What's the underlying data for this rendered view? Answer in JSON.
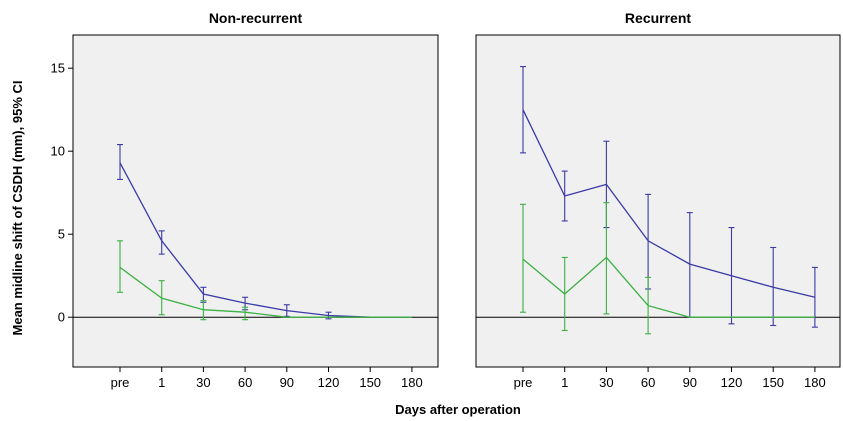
{
  "chart_data": {
    "type": "line",
    "xlabel": "Days after operation",
    "ylabel": "Mean midline shift of CSDH (mm), 95% CI",
    "categories": [
      "pre",
      "1",
      "30",
      "60",
      "90",
      "120",
      "150",
      "180"
    ],
    "ylim": [
      -3,
      17
    ],
    "yticks": [
      0,
      5,
      10,
      15
    ],
    "grid": false,
    "reference_line_y": 0,
    "colors": {
      "blue": "#3a3aa8",
      "green": "#3cb043"
    },
    "panels": [
      {
        "title": "Non-recurrent",
        "series": [
          {
            "color": "blue",
            "mean": [
              9.3,
              4.6,
              1.4,
              0.85,
              0.4,
              0.1,
              0.0,
              0.0
            ],
            "lower": [
              8.3,
              3.8,
              0.9,
              0.45,
              0.05,
              -0.1,
              0.0,
              0.0
            ],
            "upper": [
              10.4,
              5.2,
              1.8,
              1.2,
              0.75,
              0.3,
              0.0,
              0.0
            ]
          },
          {
            "color": "green",
            "mean": [
              3.0,
              1.15,
              0.45,
              0.3,
              0.0,
              0.0,
              0.0,
              0.0
            ],
            "lower": [
              1.5,
              0.15,
              -0.15,
              -0.15,
              0.0,
              0.0,
              0.0,
              0.0
            ],
            "upper": [
              4.6,
              2.2,
              1.0,
              0.6,
              0.0,
              0.0,
              0.0,
              0.0
            ]
          }
        ]
      },
      {
        "title": "Recurrent",
        "series": [
          {
            "color": "blue",
            "mean": [
              12.5,
              7.3,
              8.0,
              4.6,
              3.2,
              2.5,
              1.8,
              1.2
            ],
            "lower": [
              9.9,
              5.8,
              5.4,
              1.7,
              0.0,
              -0.4,
              -0.5,
              -0.6
            ],
            "upper": [
              15.1,
              8.8,
              10.6,
              7.4,
              6.3,
              5.4,
              4.2,
              3.0
            ]
          },
          {
            "color": "green",
            "mean": [
              3.5,
              1.4,
              3.6,
              0.7,
              0.0,
              0.0,
              0.0,
              0.0
            ],
            "lower": [
              0.3,
              -0.8,
              0.2,
              -1.0,
              0.0,
              0.0,
              0.0,
              0.0
            ],
            "upper": [
              6.8,
              3.6,
              6.9,
              2.4,
              0.0,
              0.0,
              0.0,
              0.0
            ]
          }
        ]
      }
    ]
  }
}
